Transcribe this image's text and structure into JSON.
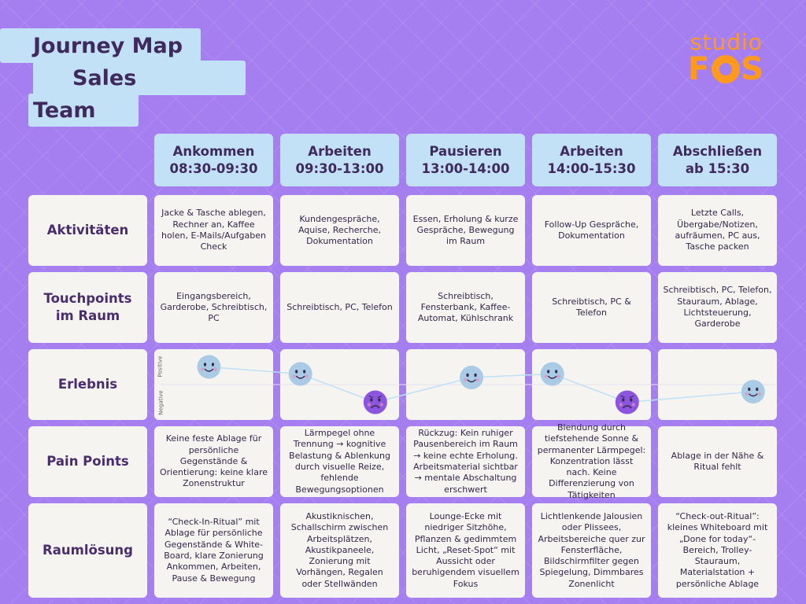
{
  "title": {
    "line1": "Journey Map",
    "line2": "Sales",
    "line3": "Team"
  },
  "logo": {
    "line1": "studio",
    "line2a": "F",
    "line2b": "S"
  },
  "phases": [
    {
      "name": "Ankommen",
      "time": "08:30-09:30"
    },
    {
      "name": "Arbeiten",
      "time": "09:30-13:00"
    },
    {
      "name": "Pausieren",
      "time": "13:00-14:00"
    },
    {
      "name": "Arbeiten",
      "time": "14:00-15:30"
    },
    {
      "name": "Abschließen",
      "time": "ab 15:30"
    }
  ],
  "rows": {
    "activities": {
      "label": "Aktivitäten",
      "cells": [
        "Jacke & Tasche ablegen, Rechner an, Kaffee holen, E-Mails/Aufgaben Check",
        "Kundengespräche, Aquise, Recherche, Dokumentation",
        "Essen, Erholung & kurze Gespräche, Bewegung im Raum",
        "Follow-Up Gespräche, Dokumentation",
        "Letzte Calls, Übergabe/Notizen, aufräumen, PC aus, Tasche packen"
      ]
    },
    "touchpoints": {
      "label": "Touchpoints im Raum",
      "cells": [
        "Eingangsbereich, Garderobe, Schreibtisch, PC",
        "Schreibtisch, PC, Telefon",
        "Schreibtisch, Fensterbank, Kaffee-Automat, Kühlschrank",
        "Schreibtisch, PC & Telefon",
        "Schreibtisch, PC, Telefon, Stauraum, Ablage, Lichtsteuerung, Garderobe"
      ]
    },
    "experience": {
      "label": "Erlebnis",
      "axis_positive": "Positive",
      "axis_negative": "Negative"
    },
    "pain_points": {
      "label": "Pain Points",
      "cells": [
        "Keine feste Ablage für persönliche Gegenstände & Orientierung: keine klare Zonenstruktur",
        "Lärmpegel ohne Trennung → kognitive Belastung & Ablenkung durch visuelle Reize, fehlende Bewegungsoptionen",
        "Rückzug: Kein ruhiger Pausenbereich im Raum → keine echte Erholung. Arbeitsmaterial sichtbar → mentale Abschaltung erschwert",
        "Blendung durch tiefstehende Sonne & permanenter Lärmpegel: Konzentration lässt nach. Keine Differenzierung von Tätigkeiten",
        "Ablage in der Nähe & Ritual fehlt"
      ]
    },
    "solutions": {
      "label": "Raumlösung",
      "cells": [
        "“Check-In-Ritual” mit Ablage für persönliche Gegenstände & White-Board, klare Zonierung Ankommen, Arbeiten, Pause & Bewegung",
        "Akustiknischen, Schallschirm zwischen Arbeitsplätzen, Akustikpaneele, Zonierung mit Vorhängen, Regalen oder Stellwänden",
        "Lounge-Ecke mit niedriger Sitzhöhe, Pflanzen & gedimmtem Licht, „Reset-Spot“ mit Aussicht oder beruhigendem visuellem Fokus",
        "Lichtlenkende Jalousien oder Plissees, Arbeitsbereiche quer zur Fensterfläche, Bildschirmfilter gegen Spiegelung, Dimmbares Zonenlicht",
        "“Check-out-Ritual”: kleines Whiteboard mit „Done for today“-Bereich, Trolley-Stauraum, Materialstation + persönliche Ablage"
      ]
    }
  },
  "emotions": [
    {
      "phase": 1,
      "mood": "positive",
      "level": 0.75
    },
    {
      "phase": 2,
      "mood": "positive",
      "level": 0.65
    },
    {
      "phase": 2,
      "mood": "negative",
      "level": 0.25
    },
    {
      "phase": 3,
      "mood": "positive",
      "level": 0.6
    },
    {
      "phase": 4,
      "mood": "positive",
      "level": 0.65
    },
    {
      "phase": 4,
      "mood": "negative",
      "level": 0.25
    },
    {
      "phase": 5,
      "mood": "positive",
      "level": 0.4
    }
  ],
  "colors": {
    "positive": "#a9cbe6",
    "negative": "#8b55e0",
    "line": "#bfe0f7"
  }
}
